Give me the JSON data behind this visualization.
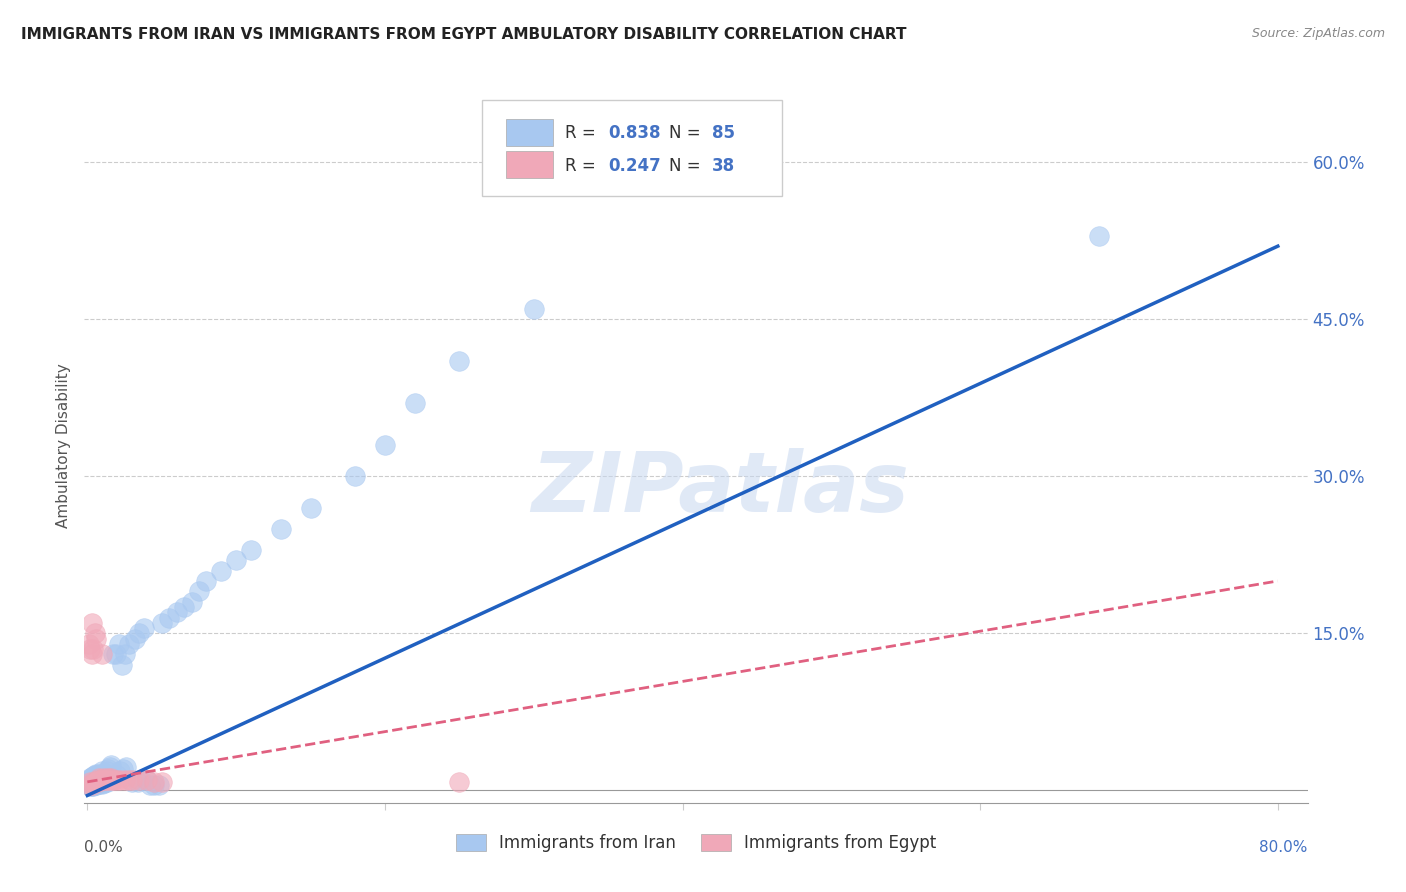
{
  "title": "IMMIGRANTS FROM IRAN VS IMMIGRANTS FROM EGYPT AMBULATORY DISABILITY CORRELATION CHART",
  "source": "Source: ZipAtlas.com",
  "ylabel": "Ambulatory Disability",
  "xlim": [
    -0.002,
    0.82
  ],
  "ylim": [
    -0.012,
    0.67
  ],
  "iran_R": 0.838,
  "iran_N": 85,
  "egypt_R": 0.247,
  "egypt_N": 38,
  "iran_color": "#a8c8f0",
  "egypt_color": "#f0a8b8",
  "iran_line_color": "#2060c0",
  "egypt_line_color": "#e06080",
  "watermark": "ZIPatlas",
  "watermark_color": "#c8d8f0",
  "legend_label_iran": "Immigrants from Iran",
  "legend_label_egypt": "Immigrants from Egypt",
  "iran_scatter_x": [
    0.001,
    0.001,
    0.001,
    0.002,
    0.002,
    0.002,
    0.002,
    0.003,
    0.003,
    0.003,
    0.003,
    0.004,
    0.004,
    0.004,
    0.004,
    0.005,
    0.005,
    0.005,
    0.005,
    0.006,
    0.006,
    0.006,
    0.006,
    0.007,
    0.007,
    0.007,
    0.008,
    0.008,
    0.008,
    0.009,
    0.009,
    0.01,
    0.01,
    0.01,
    0.011,
    0.011,
    0.012,
    0.012,
    0.013,
    0.013,
    0.014,
    0.014,
    0.015,
    0.015,
    0.016,
    0.016,
    0.017,
    0.018,
    0.019,
    0.02,
    0.021,
    0.022,
    0.023,
    0.024,
    0.025,
    0.026,
    0.028,
    0.03,
    0.032,
    0.034,
    0.035,
    0.036,
    0.038,
    0.04,
    0.042,
    0.045,
    0.048,
    0.05,
    0.055,
    0.06,
    0.065,
    0.07,
    0.075,
    0.08,
    0.09,
    0.1,
    0.11,
    0.13,
    0.15,
    0.18,
    0.2,
    0.22,
    0.25,
    0.3,
    0.68
  ],
  "iran_scatter_y": [
    0.005,
    0.008,
    0.01,
    0.004,
    0.006,
    0.009,
    0.012,
    0.004,
    0.007,
    0.01,
    0.013,
    0.004,
    0.007,
    0.01,
    0.014,
    0.005,
    0.008,
    0.011,
    0.015,
    0.005,
    0.008,
    0.012,
    0.016,
    0.006,
    0.01,
    0.015,
    0.006,
    0.01,
    0.016,
    0.007,
    0.012,
    0.006,
    0.01,
    0.018,
    0.007,
    0.014,
    0.008,
    0.016,
    0.008,
    0.018,
    0.009,
    0.02,
    0.01,
    0.022,
    0.01,
    0.024,
    0.13,
    0.012,
    0.13,
    0.015,
    0.14,
    0.018,
    0.12,
    0.02,
    0.13,
    0.022,
    0.14,
    0.008,
    0.145,
    0.008,
    0.15,
    0.01,
    0.155,
    0.01,
    0.005,
    0.005,
    0.005,
    0.16,
    0.165,
    0.17,
    0.175,
    0.18,
    0.19,
    0.2,
    0.21,
    0.22,
    0.23,
    0.25,
    0.27,
    0.3,
    0.33,
    0.37,
    0.41,
    0.46,
    0.53
  ],
  "egypt_scatter_x": [
    0.001,
    0.001,
    0.002,
    0.002,
    0.003,
    0.003,
    0.003,
    0.004,
    0.004,
    0.005,
    0.005,
    0.006,
    0.006,
    0.007,
    0.007,
    0.008,
    0.008,
    0.009,
    0.01,
    0.01,
    0.011,
    0.012,
    0.013,
    0.014,
    0.015,
    0.016,
    0.017,
    0.018,
    0.02,
    0.022,
    0.025,
    0.028,
    0.03,
    0.035,
    0.04,
    0.045,
    0.05,
    0.25
  ],
  "egypt_scatter_y": [
    0.005,
    0.14,
    0.008,
    0.135,
    0.005,
    0.13,
    0.16,
    0.008,
    0.135,
    0.008,
    0.15,
    0.008,
    0.145,
    0.008,
    0.01,
    0.01,
    0.012,
    0.01,
    0.01,
    0.13,
    0.012,
    0.01,
    0.01,
    0.012,
    0.01,
    0.012,
    0.01,
    0.01,
    0.01,
    0.01,
    0.01,
    0.01,
    0.01,
    0.01,
    0.01,
    0.008,
    0.008,
    0.008
  ],
  "iran_line_x": [
    0.0,
    0.8
  ],
  "iran_line_y": [
    -0.005,
    0.52
  ],
  "egypt_line_x": [
    0.0,
    0.8
  ],
  "egypt_line_y": [
    0.008,
    0.2
  ],
  "ytick_values": [
    0.0,
    0.15,
    0.3,
    0.45,
    0.6
  ],
  "xtick_positions": [
    0.0,
    0.2,
    0.4,
    0.6,
    0.8
  ]
}
